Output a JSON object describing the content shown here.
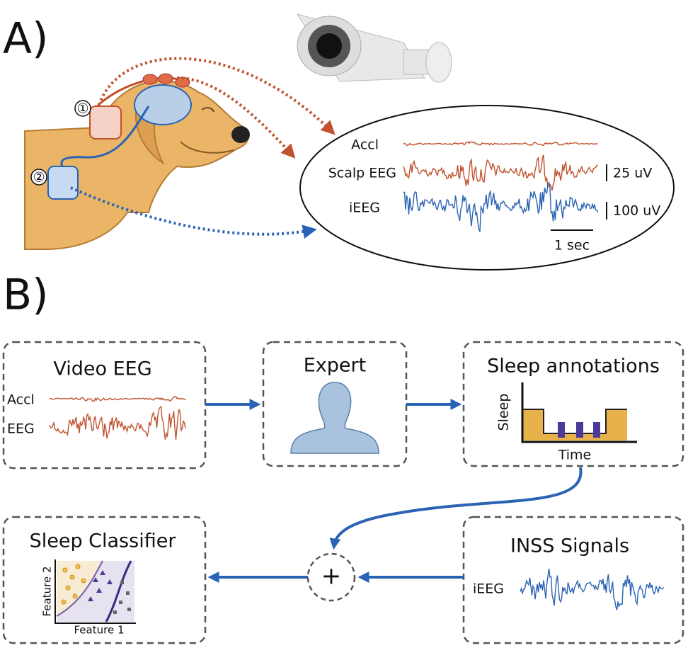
{
  "panel_a": {
    "label": "A)",
    "markers": [
      "①",
      "②"
    ],
    "traces": [
      "Accl",
      "Scalp EEG",
      "iEEG"
    ],
    "scale_bars": [
      "25 uV",
      "100 uV",
      "1 sec"
    ]
  },
  "panel_b": {
    "label": "B)",
    "video_eeg": {
      "title": "Video EEG",
      "traces": [
        "Accl",
        "EEG"
      ]
    },
    "expert": {
      "title": "Expert"
    },
    "sleep_annotations": {
      "title": "Sleep annotations",
      "y_label": "Sleep",
      "x_label": "Time"
    },
    "sleep_classifier": {
      "title": "Sleep Classifier",
      "y_label": "Feature 2",
      "x_label": "Feature 1"
    },
    "inss_signals": {
      "title": "INSS Signals",
      "traces": [
        "iEEG"
      ]
    },
    "combine": "+"
  }
}
